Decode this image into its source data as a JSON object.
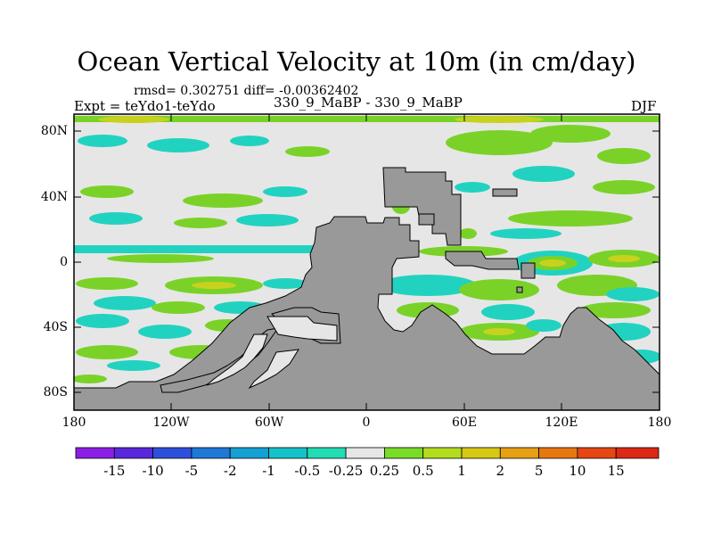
{
  "title": "Ocean Vertical Velocity at 10m (in cm/day)",
  "stats": "rmsd= 0.302751  diff= -0.00362402",
  "experiment": "Expt = teYdo1-teYdo",
  "runs": "330_9_MaBP - 330_9_MaBP",
  "season": "DJF",
  "axes": {
    "lat_labels": [
      "80N",
      "40N",
      "0",
      "40S",
      "80S"
    ],
    "lat_values": [
      80,
      40,
      0,
      -40,
      -80
    ],
    "lon_labels": [
      "180",
      "120W",
      "60W",
      "0",
      "60E",
      "120E",
      "180"
    ],
    "lon_values": [
      -180,
      -120,
      -60,
      0,
      60,
      120,
      180
    ]
  },
  "colorbar": {
    "labels": [
      "-15",
      "-10",
      "-5",
      "-2",
      "-1",
      "-0.5",
      "-0.25",
      "0.25",
      "0.5",
      "1",
      "2",
      "5",
      "10",
      "15"
    ],
    "colors": [
      "#8c1ee6",
      "#5a28dc",
      "#2d50dc",
      "#1e78d7",
      "#14a0d2",
      "#14c3c8",
      "#22dcb4",
      "#e6e6e6",
      "#7adc28",
      "#b4dc1e",
      "#d7c814",
      "#e6a014",
      "#e67814",
      "#e64614",
      "#dc2814"
    ]
  },
  "colors": {
    "land": "#999999",
    "zero": "#e6e6e6",
    "cyan": "#22d2c0",
    "green": "#7ad228",
    "yellow": "#c8d21e"
  }
}
